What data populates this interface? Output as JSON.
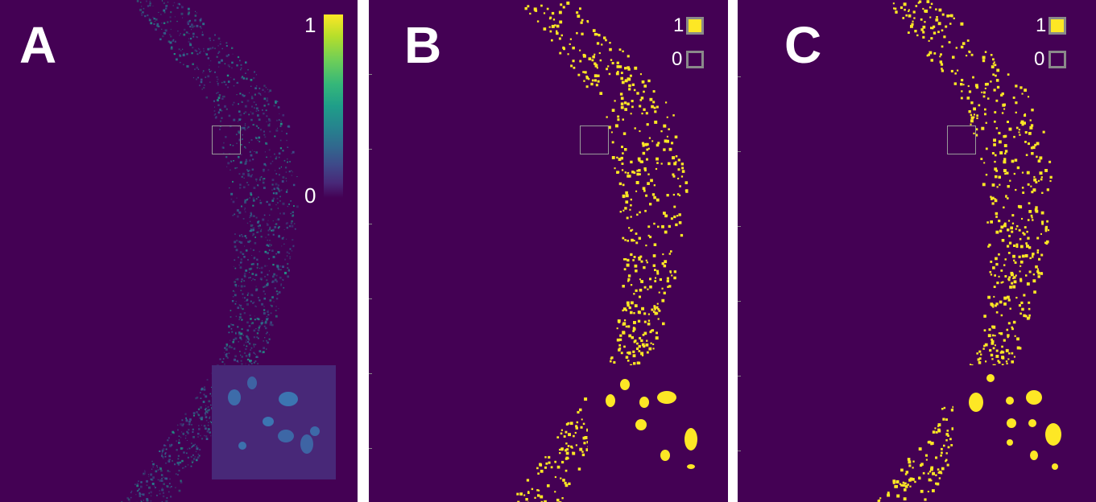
{
  "panels": [
    {
      "letter": "A"
    },
    {
      "letter": "B"
    },
    {
      "letter": "C"
    }
  ],
  "colorbar": {
    "max_label": "1",
    "min_label": "0",
    "colormap": "viridis"
  },
  "legend": {
    "one_label": "1",
    "zero_label": "0",
    "one_color": "#fde725",
    "zero_color": "#440154"
  },
  "colors": {
    "background": "#440154",
    "foreground": "#fde725",
    "roi_border": "#9a9a9a"
  }
}
